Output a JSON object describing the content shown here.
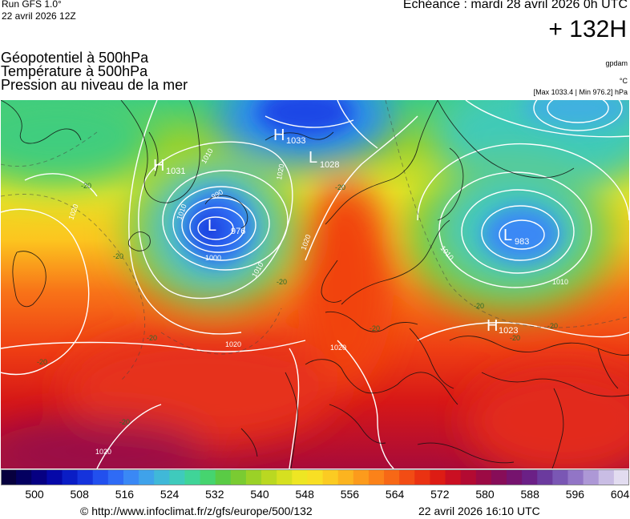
{
  "header": {
    "run": "Run GFS 1.0°",
    "run_date": "22 avril 2026 12Z",
    "echeance": "Echéance : mardi 28 avril 2026 0h UTC",
    "lead": "+ 132H"
  },
  "titles": [
    "Géopotentiel à 500hPa",
    "Température à 500hPa",
    "Pression au niveau de la mer"
  ],
  "units": {
    "geopotential": "gpdam",
    "temperature": "°C",
    "pressure_range": "[Max 1033.4 | Min 976.2] hPa"
  },
  "map": {
    "pressure_centers": [
      {
        "type": "H",
        "value": "1033"
      },
      {
        "type": "H",
        "value": "1031"
      },
      {
        "type": "L",
        "value": "1028"
      },
      {
        "type": "L",
        "value": "976"
      },
      {
        "type": "L",
        "value": "983"
      },
      {
        "type": "H",
        "value": "1023"
      }
    ],
    "isobar_labels": [
      "1020",
      "1020",
      "1020",
      "1020",
      "1010",
      "1010",
      "1010",
      "1000",
      "990",
      "1020",
      "1010",
      "1010",
      "1020"
    ],
    "temperature_labels": [
      "-20",
      "-20",
      "-20",
      "-20",
      "-20",
      "-20",
      "-20",
      "-20",
      "-20",
      "-20",
      "-20"
    ]
  },
  "legend": {
    "colors": [
      "#07003e",
      "#040060",
      "#060082",
      "#0508a8",
      "#0a1dc5",
      "#1533dc",
      "#2250ee",
      "#2f6bf5",
      "#3a88f5",
      "#3fa2ea",
      "#40b8d8",
      "#3fcabc",
      "#40d498",
      "#46d46f",
      "#5acb45",
      "#7acb32",
      "#9bd127",
      "#bad821",
      "#d6e020",
      "#eee623",
      "#f8df24",
      "#fbcb22",
      "#fcb41f",
      "#fc9b1c",
      "#fb8219",
      "#f76816",
      "#f24c14",
      "#ea3212",
      "#dd1c14",
      "#ca0f22",
      "#b30a32",
      "#9c0a44",
      "#870d58",
      "#76136e",
      "#6b2086",
      "#6b3a9e",
      "#7a57b4",
      "#9275c6",
      "#ad98d6",
      "#c9bde4",
      "#e2dcf0"
    ],
    "ticks": [
      "500",
      "508",
      "516",
      "524",
      "532",
      "540",
      "548",
      "556",
      "564",
      "572",
      "580",
      "588",
      "596",
      "604"
    ]
  },
  "footer": {
    "source": "© http://www.infoclimat.fr/z/gfs/europe/500/132",
    "generated": "22 avril 2026 16:10 UTC"
  }
}
